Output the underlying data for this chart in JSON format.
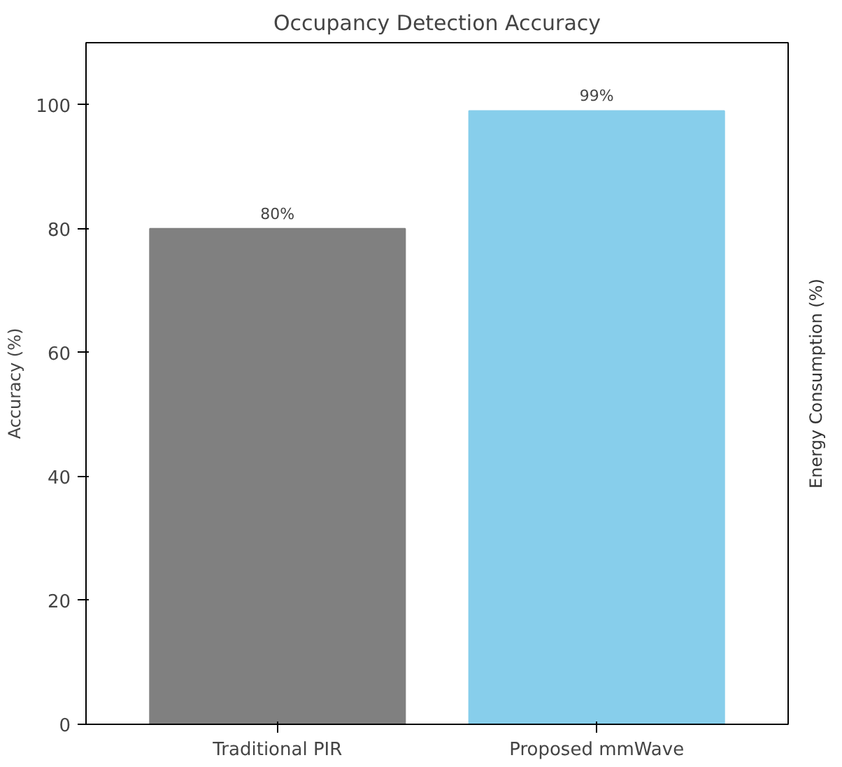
{
  "chart_data": [
    {
      "type": "bar",
      "title": "Occupancy Detection Accuracy",
      "ylabel": "Accuracy (%)",
      "categories": [
        "Traditional PIR",
        "Proposed mmWave"
      ],
      "values": [
        80,
        99
      ],
      "colors": [
        "#808080",
        "#87ceeb"
      ],
      "value_labels": [
        "80%",
        "99%"
      ],
      "ylim": [
        0,
        110
      ],
      "yticks": [
        0,
        20,
        40,
        60,
        80,
        100
      ],
      "grid": false
    },
    {
      "type": "other",
      "ylabel": "Energy Consumption (%)"
    }
  ]
}
